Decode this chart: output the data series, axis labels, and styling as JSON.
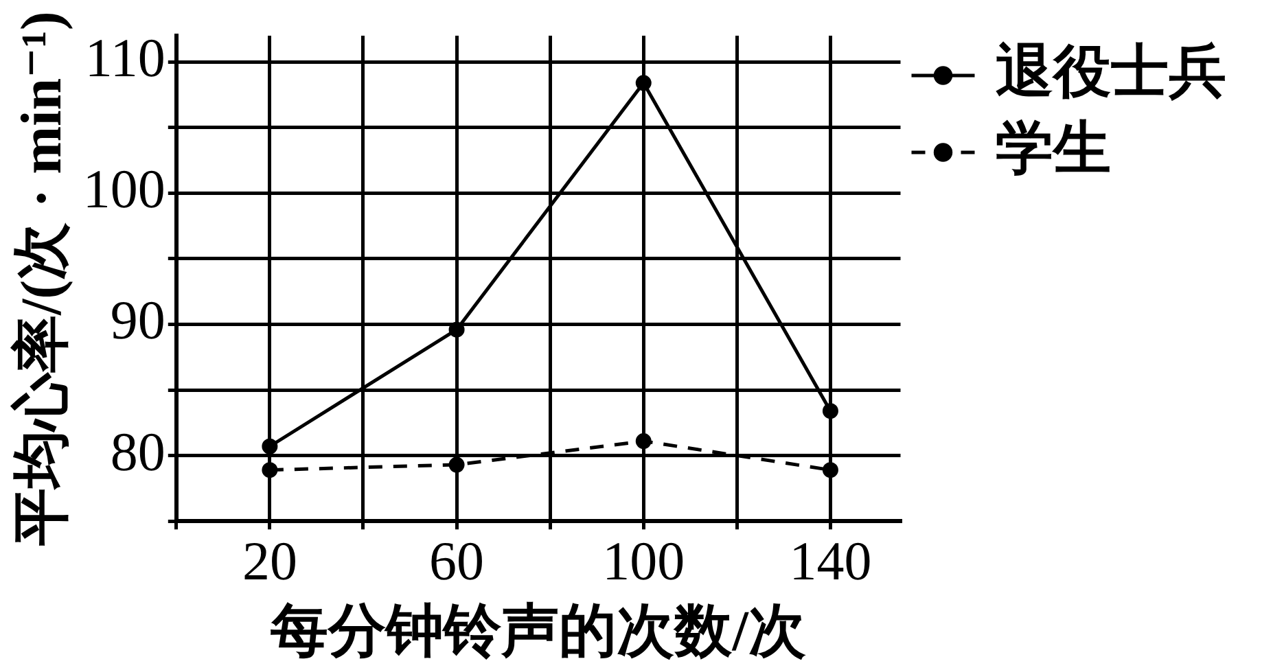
{
  "chart_data": {
    "type": "line",
    "xlabel": "每分钟铃声的次数/次",
    "ylabel": "平均心率/(次 · min⁻¹)",
    "xlim": [
      0,
      155
    ],
    "xticks": [
      {
        "value": 0,
        "label": null
      },
      20,
      {
        "value": 40,
        "label": null
      },
      60,
      {
        "value": 80,
        "label": null
      },
      100,
      {
        "value": 120,
        "label": null
      },
      140
    ],
    "ylim": [
      75,
      112
    ],
    "yticks": [
      {
        "value": 75,
        "label": null
      },
      80,
      {
        "value": 85,
        "label": null
      },
      90,
      {
        "value": 95,
        "label": null
      },
      100,
      {
        "value": 105,
        "label": null
      },
      110
    ],
    "grid": true,
    "legend": "right",
    "marker": "circle",
    "series": [
      {
        "name": "退役士兵",
        "color": "#000000",
        "line_style": "solid",
        "x": [
          20,
          60,
          100,
          140
        ],
        "values": [
          80.7,
          89.6,
          108.4,
          83.4
        ]
      },
      {
        "name": "学生",
        "color": "#000000",
        "line_style": "dashed",
        "x": [
          20,
          60,
          100,
          140
        ],
        "values": [
          78.9,
          79.3,
          81.1,
          78.9
        ]
      }
    ]
  }
}
